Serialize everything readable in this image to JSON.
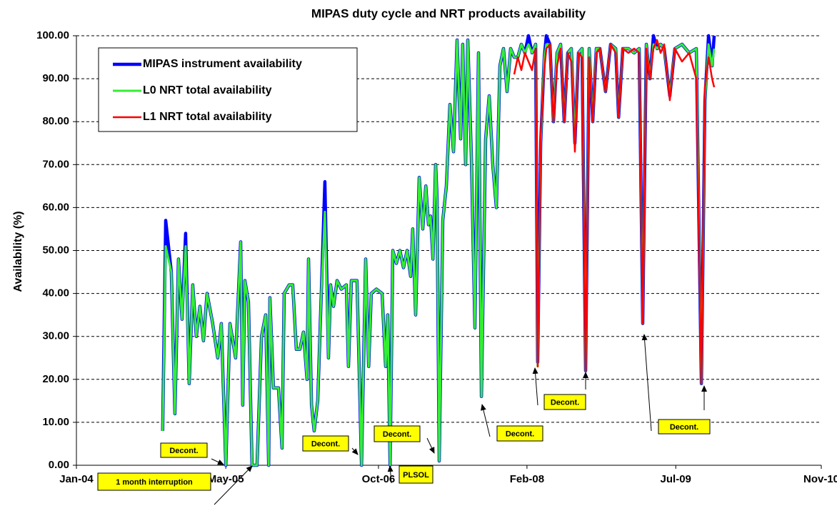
{
  "chart_data": {
    "type": "line",
    "title": "MIPAS duty cycle and NRT products availability",
    "y_label": "Availability (%)",
    "xlim": [
      37987,
      40490
    ],
    "xticks": [
      {
        "value": 37987,
        "label": "Jan-04"
      },
      {
        "value": 38489,
        "label": "May-05"
      },
      {
        "value": 39002,
        "label": "Oct-06"
      },
      {
        "value": 39501,
        "label": "Feb-08"
      },
      {
        "value": 40001,
        "label": "Jul-09"
      },
      {
        "value": 40490,
        "label": "Nov-10"
      }
    ],
    "ylim": [
      0,
      100
    ],
    "yticks": [
      {
        "value": 0,
        "label": "0.00"
      },
      {
        "value": 10,
        "label": "10.00"
      },
      {
        "value": 20,
        "label": "20.00"
      },
      {
        "value": 30,
        "label": "30.00"
      },
      {
        "value": 40,
        "label": "40.00"
      },
      {
        "value": 50,
        "label": "50.00"
      },
      {
        "value": 60,
        "label": "60.00"
      },
      {
        "value": 70,
        "label": "70.00"
      },
      {
        "value": 80,
        "label": "80.00"
      },
      {
        "value": 90,
        "label": "90.00"
      },
      {
        "value": 100,
        "label": "100.00"
      }
    ],
    "grid": true,
    "legend": "upper left",
    "x": [
      38277,
      38287,
      38306,
      38318,
      38330,
      38342,
      38354,
      38366,
      38378,
      38390,
      38402,
      38414,
      38426,
      38445,
      38462,
      38474,
      38489,
      38503,
      38522,
      38539,
      38546,
      38553,
      38565,
      38577,
      38594,
      38609,
      38623,
      38633,
      38637,
      38649,
      38666,
      38678,
      38685,
      38702,
      38714,
      38726,
      38738,
      38750,
      38762,
      38767,
      38777,
      38786,
      38798,
      38810,
      38822,
      38834,
      38841,
      38851,
      38863,
      38877,
      38894,
      38901,
      38911,
      38930,
      38945,
      38959,
      38969,
      38978,
      38995,
      39014,
      39026,
      39033,
      39041,
      39050,
      39062,
      39074,
      39086,
      39098,
      39110,
      39117,
      39127,
      39139,
      39151,
      39161,
      39170,
      39177,
      39185,
      39194,
      39199,
      39206,
      39218,
      39230,
      39242,
      39254,
      39266,
      39278,
      39285,
      39295,
      39302,
      39314,
      39326,
      39338,
      39348,
      39362,
      39374,
      39386,
      39398,
      39410,
      39422,
      39434,
      39446,
      39458,
      39470,
      39482,
      39494,
      39506,
      39518,
      39530,
      39537,
      39547,
      39559,
      39566,
      39578,
      39590,
      39602,
      39614,
      39626,
      39638,
      39650,
      39662,
      39674,
      39686,
      39698,
      39710,
      39722,
      39734,
      39746,
      39765,
      39782,
      39799,
      39809,
      39823,
      39842,
      39861,
      39878,
      39890,
      39902,
      39914,
      39926,
      39938,
      39950,
      39962,
      39981,
      39998,
      40022,
      40046,
      40070,
      40087,
      40099,
      40111,
      40123,
      40130
    ],
    "series": [
      {
        "name": "MIPAS instrument availability",
        "color": "#0000ff",
        "values": [
          8,
          57,
          45,
          12,
          48,
          34,
          54,
          19,
          42,
          30,
          37,
          29,
          40,
          33,
          25,
          33,
          0,
          33,
          25,
          52,
          14,
          43,
          38,
          0,
          0,
          30,
          35,
          0,
          39,
          18,
          18,
          4,
          40,
          42,
          42,
          27,
          27,
          31,
          20,
          48,
          14,
          8,
          15,
          40,
          66,
          25,
          42,
          37,
          43,
          41,
          42,
          23,
          43,
          43,
          0,
          48,
          23,
          40,
          41,
          40,
          23,
          35,
          0,
          50,
          47,
          50,
          46,
          50,
          44,
          55,
          35,
          67,
          55,
          65,
          56,
          58,
          48,
          70,
          62,
          1,
          57,
          65,
          84,
          73,
          99,
          76,
          98,
          70,
          99,
          72,
          32,
          96,
          16,
          76,
          86,
          70,
          60,
          93,
          97,
          87,
          97,
          95,
          95,
          98,
          96,
          100,
          96,
          98,
          24,
          75,
          95,
          100,
          98,
          80,
          96,
          98,
          80,
          96,
          97,
          75,
          96,
          97,
          22,
          97,
          80,
          97,
          97,
          87,
          98,
          97,
          81,
          97,
          97,
          96,
          97,
          33,
          98,
          90,
          100,
          97,
          98,
          97,
          86,
          97,
          98,
          96,
          97,
          19,
          85,
          100,
          93,
          100
        ]
      },
      {
        "name": "L0 NRT total availability",
        "color": "#33ee33",
        "values": [
          8,
          51,
          45,
          12,
          48,
          34,
          51,
          19,
          42,
          30,
          37,
          29,
          40,
          33,
          25,
          33,
          0,
          33,
          25,
          52,
          14,
          43,
          38,
          0,
          0,
          30,
          35,
          0,
          39,
          18,
          18,
          4,
          40,
          42,
          42,
          27,
          27,
          31,
          20,
          48,
          14,
          8,
          15,
          40,
          59,
          25,
          42,
          37,
          43,
          41,
          42,
          23,
          43,
          43,
          0,
          48,
          23,
          40,
          41,
          40,
          23,
          35,
          0,
          50,
          47,
          50,
          46,
          50,
          44,
          55,
          35,
          67,
          55,
          65,
          56,
          58,
          48,
          70,
          62,
          1,
          57,
          65,
          84,
          73,
          99,
          76,
          98,
          70,
          99,
          72,
          32,
          96,
          16,
          76,
          86,
          70,
          60,
          93,
          97,
          87,
          97,
          95,
          95,
          98,
          96,
          98,
          96,
          98,
          23,
          75,
          95,
          98,
          98,
          80,
          96,
          98,
          80,
          96,
          97,
          75,
          96,
          97,
          22,
          97,
          80,
          97,
          97,
          87,
          98,
          97,
          81,
          97,
          97,
          96,
          97,
          33,
          98,
          90,
          98,
          97,
          98,
          97,
          86,
          97,
          98,
          96,
          97,
          19,
          85,
          98,
          93,
          97
        ]
      },
      {
        "name": "L1 NRT total availability",
        "color": "#ff0000",
        "values": [
          null,
          null,
          null,
          null,
          null,
          null,
          null,
          null,
          null,
          null,
          null,
          null,
          null,
          null,
          null,
          null,
          null,
          null,
          null,
          null,
          null,
          null,
          null,
          null,
          null,
          null,
          null,
          null,
          null,
          null,
          null,
          null,
          null,
          null,
          null,
          null,
          null,
          null,
          null,
          null,
          null,
          null,
          null,
          null,
          null,
          null,
          null,
          null,
          null,
          null,
          null,
          null,
          null,
          null,
          null,
          null,
          null,
          null,
          null,
          null,
          null,
          null,
          null,
          null,
          null,
          null,
          null,
          null,
          null,
          null,
          null,
          null,
          null,
          null,
          null,
          null,
          null,
          null,
          null,
          null,
          null,
          null,
          null,
          null,
          null,
          null,
          null,
          null,
          null,
          null,
          null,
          null,
          null,
          null,
          null,
          null,
          null,
          null,
          null,
          null,
          null,
          91,
          95,
          92,
          96,
          94,
          92,
          97,
          23,
          77,
          92,
          97,
          98,
          80,
          93,
          97,
          80,
          96,
          94,
          73,
          96,
          95,
          22,
          95,
          80,
          96,
          97,
          87,
          98,
          96,
          81,
          97,
          96,
          97,
          96,
          33,
          97,
          90,
          97,
          99,
          96,
          98,
          85,
          97,
          94,
          96,
          90,
          19,
          88,
          95,
          90,
          88
        ]
      }
    ],
    "annotations": [
      {
        "text": "Decont."
      },
      {
        "text": "1 month interruption"
      },
      {
        "text": "Decont."
      },
      {
        "text": "Decont."
      },
      {
        "text": "PLSOL"
      },
      {
        "text": "Decont."
      },
      {
        "text": "Decont."
      },
      {
        "text": "Decont."
      }
    ]
  }
}
